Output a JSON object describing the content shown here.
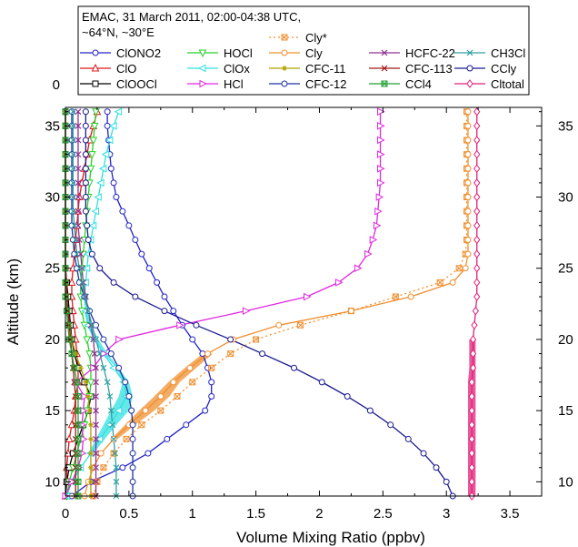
{
  "chart_data": {
    "type": "line",
    "title_lines": [
      "EMAC, 31 March 2011, 02:00-04:38 UTC,",
      "~64°N, ~30°E"
    ],
    "xlabel": "Volume Mixing Ratio (ppbv)",
    "ylabel": "Altitude (km)",
    "xlim": [
      0,
      3.75
    ],
    "ylim": [
      9,
      36.3
    ],
    "x_ticks": [
      0,
      0.5,
      1,
      1.5,
      2,
      2.5,
      3,
      3.5
    ],
    "x_tick_labels": [
      "0",
      "0.5",
      "1",
      "1.5",
      "2",
      "2.5",
      "3",
      "3.5"
    ],
    "y_ticks": [
      10,
      15,
      20,
      25,
      30,
      35
    ],
    "y_tick_labels": [
      "10",
      "15",
      "20",
      "25",
      "30",
      "35"
    ],
    "extra_y_tick_label": "0",
    "grid": false,
    "legend_placement": "top",
    "series": [
      {
        "name": "ClONO2",
        "color": "#2323c8",
        "marker": "circle",
        "style": "solid",
        "x": [
          0.05,
          0.2,
          0.45,
          0.65,
          0.8,
          0.95,
          1.1,
          1.15,
          1.15,
          1.12,
          1.08,
          1.0,
          0.92,
          0.85,
          0.78,
          0.72,
          0.66,
          0.6,
          0.55,
          0.5,
          0.45,
          0.4,
          0.38,
          0.36,
          0.35,
          0.34,
          0.33,
          0.33
        ],
        "y": [
          9,
          10,
          11,
          12,
          13,
          14,
          15,
          16,
          17,
          18,
          19,
          20,
          21,
          22,
          23,
          24,
          25,
          26,
          27,
          28,
          29,
          30,
          31,
          32,
          33,
          34,
          35,
          36
        ]
      },
      {
        "name": "ClO",
        "color": "#e01818",
        "marker": "triangle-up",
        "style": "solid",
        "x": [
          0.0,
          0.01,
          0.01,
          0.02,
          0.03,
          0.05,
          0.07,
          0.08,
          0.1,
          0.1,
          0.09,
          0.08,
          0.07,
          0.06,
          0.05,
          0.05,
          0.06,
          0.07,
          0.08,
          0.09,
          0.1,
          0.11,
          0.13,
          0.15,
          0.17,
          0.19,
          0.22,
          0.25
        ],
        "y": [
          9,
          10,
          11,
          12,
          13,
          14,
          15,
          16,
          17,
          18,
          19,
          20,
          21,
          22,
          23,
          24,
          25,
          26,
          27,
          28,
          29,
          30,
          31,
          32,
          33,
          34,
          35,
          36
        ]
      },
      {
        "name": "ClOOCl",
        "color": "#000000",
        "marker": "square",
        "style": "solid",
        "x": [
          0.0,
          0.01,
          0.03,
          0.06,
          0.1,
          0.14,
          0.18,
          0.2,
          0.15,
          0.1,
          0.07,
          0.05,
          0.04,
          0.03,
          0.02,
          0.01,
          0.0,
          0.0,
          0.0,
          0.0,
          0.0,
          0.0,
          0.0,
          0.0,
          0.0,
          0.0,
          0.0,
          0.0
        ],
        "y": [
          9,
          10,
          11,
          12,
          13,
          14,
          15,
          16,
          17,
          18,
          19,
          20,
          21,
          22,
          23,
          24,
          25,
          26,
          27,
          28,
          29,
          30,
          31,
          32,
          33,
          34,
          35,
          36
        ]
      },
      {
        "name": "HOCl",
        "color": "#28d028",
        "marker": "triangle-down",
        "style": "solid",
        "x": [
          0.01,
          0.03,
          0.06,
          0.09,
          0.12,
          0.15,
          0.17,
          0.19,
          0.2,
          0.2,
          0.19,
          0.17,
          0.15,
          0.13,
          0.12,
          0.12,
          0.13,
          0.14,
          0.15,
          0.16,
          0.17,
          0.18,
          0.19,
          0.2,
          0.21,
          0.22,
          0.23,
          0.24
        ],
        "y": [
          9,
          10,
          11,
          12,
          13,
          14,
          15,
          16,
          17,
          18,
          19,
          20,
          21,
          22,
          23,
          24,
          25,
          26,
          27,
          28,
          29,
          30,
          31,
          32,
          33,
          34,
          35,
          36
        ]
      },
      {
        "name": "ClOx",
        "color": "#30e0e0",
        "marker": "triangle-left",
        "style": "solid",
        "x": [
          0.01,
          0.05,
          0.12,
          0.2,
          0.27,
          0.35,
          0.42,
          0.48,
          0.46,
          0.38,
          0.3,
          0.23,
          0.18,
          0.16,
          0.15,
          0.16,
          0.17,
          0.18,
          0.2,
          0.22,
          0.24,
          0.26,
          0.28,
          0.3,
          0.32,
          0.35,
          0.38,
          0.42
        ],
        "y": [
          9,
          10,
          11,
          12,
          13,
          14,
          15,
          16,
          17,
          18,
          19,
          20,
          21,
          22,
          23,
          24,
          25,
          26,
          27,
          28,
          29,
          30,
          31,
          32,
          33,
          34,
          35,
          36
        ]
      },
      {
        "name": "HCl",
        "color": "#e028e0",
        "marker": "triangle-right",
        "style": "solid",
        "x": [
          0.0,
          0.05,
          0.1,
          0.13,
          0.14,
          0.13,
          0.14,
          0.15,
          0.08,
          0.22,
          0.3,
          0.42,
          0.9,
          1.42,
          1.9,
          2.15,
          2.3,
          2.38,
          2.42,
          2.45,
          2.46,
          2.47,
          2.48,
          2.48,
          2.48,
          2.48,
          2.48,
          2.48
        ],
        "y": [
          9,
          10,
          11,
          12,
          13,
          14,
          15,
          16,
          17,
          18,
          19,
          20,
          21,
          22,
          23,
          24,
          25,
          26,
          27,
          28,
          29,
          30,
          31,
          32,
          33,
          34,
          35,
          36
        ]
      },
      {
        "name": "Cly*",
        "color": "#f09030",
        "marker": "square-x",
        "style": "dotted",
        "x": [
          0.22,
          0.25,
          0.3,
          0.38,
          0.48,
          0.6,
          0.75,
          0.88,
          1.0,
          1.15,
          1.3,
          1.5,
          1.85,
          2.25,
          2.6,
          2.95,
          3.1,
          3.15,
          3.16,
          3.16,
          3.16,
          3.16,
          3.16,
          3.16,
          3.16,
          3.16,
          3.16,
          3.16
        ],
        "y": [
          9,
          10,
          11,
          12,
          13,
          14,
          15,
          16,
          17,
          18,
          19,
          20,
          21,
          22,
          23,
          24,
          25,
          26,
          27,
          28,
          29,
          30,
          31,
          32,
          33,
          34,
          35,
          36
        ]
      },
      {
        "name": "Cly",
        "color": "#f09030",
        "marker": "circle",
        "style": "solid",
        "x": [
          0.15,
          0.18,
          0.22,
          0.28,
          0.38,
          0.5,
          0.63,
          0.75,
          0.85,
          0.98,
          1.12,
          1.32,
          1.68,
          2.25,
          2.72,
          3.05,
          3.15,
          3.17,
          3.17,
          3.17,
          3.17,
          3.17,
          3.17,
          3.17,
          3.17,
          3.17,
          3.17,
          3.17
        ],
        "y": [
          9,
          10,
          11,
          12,
          13,
          14,
          15,
          16,
          17,
          18,
          19,
          20,
          21,
          22,
          23,
          24,
          25,
          26,
          27,
          28,
          29,
          30,
          31,
          32,
          33,
          34,
          35,
          36
        ]
      },
      {
        "name": "CFC-11",
        "color": "#b0a000",
        "marker": "star",
        "style": "solid",
        "x": [
          0.2,
          0.2,
          0.2,
          0.2,
          0.2,
          0.2,
          0.19,
          0.18,
          0.16,
          0.12,
          0.08,
          0.05,
          0.03,
          0.02,
          0.01,
          0.0,
          0.0,
          0.0,
          0.0,
          0.0,
          0.0,
          0.0,
          0.0,
          0.0,
          0.0,
          0.0,
          0.0,
          0.0
        ],
        "y": [
          9,
          10,
          11,
          12,
          13,
          14,
          15,
          16,
          17,
          18,
          19,
          20,
          21,
          22,
          23,
          24,
          25,
          26,
          27,
          28,
          29,
          30,
          31,
          32,
          33,
          34,
          35,
          36
        ]
      },
      {
        "name": "CFC-12",
        "color": "#2030a0",
        "marker": "circle",
        "style": "solid",
        "x": [
          0.53,
          0.53,
          0.53,
          0.53,
          0.53,
          0.53,
          0.52,
          0.5,
          0.47,
          0.42,
          0.36,
          0.3,
          0.24,
          0.19,
          0.15,
          0.11,
          0.09,
          0.07,
          0.06,
          0.05,
          0.05,
          0.05,
          0.05,
          0.05,
          0.05,
          0.05,
          0.05,
          0.05
        ],
        "y": [
          9,
          10,
          11,
          12,
          13,
          14,
          15,
          16,
          17,
          18,
          19,
          20,
          21,
          22,
          23,
          24,
          25,
          26,
          27,
          28,
          29,
          30,
          31,
          32,
          33,
          34,
          35,
          36
        ]
      },
      {
        "name": "HCFC-22",
        "color": "#903090",
        "marker": "x",
        "style": "solid",
        "x": [
          0.24,
          0.24,
          0.24,
          0.24,
          0.24,
          0.24,
          0.24,
          0.24,
          0.24,
          0.24,
          0.23,
          0.22,
          0.2,
          0.18,
          0.16,
          0.14,
          0.13,
          0.12,
          0.11,
          0.1,
          0.1,
          0.1,
          0.1,
          0.1,
          0.1,
          0.1,
          0.1,
          0.1
        ],
        "y": [
          9,
          10,
          11,
          12,
          13,
          14,
          15,
          16,
          17,
          18,
          19,
          20,
          21,
          22,
          23,
          24,
          25,
          26,
          27,
          28,
          29,
          30,
          31,
          32,
          33,
          34,
          35,
          36
        ]
      },
      {
        "name": "CFC-113",
        "color": "#a01818",
        "marker": "x",
        "style": "solid",
        "x": [
          0.08,
          0.08,
          0.08,
          0.08,
          0.08,
          0.08,
          0.08,
          0.08,
          0.07,
          0.06,
          0.05,
          0.04,
          0.03,
          0.02,
          0.01,
          0.01,
          0.0,
          0.0,
          0.0,
          0.0,
          0.0,
          0.0,
          0.0,
          0.0,
          0.0,
          0.0,
          0.0,
          0.0
        ],
        "y": [
          9,
          10,
          11,
          12,
          13,
          14,
          15,
          16,
          17,
          18,
          19,
          20,
          21,
          22,
          23,
          24,
          25,
          26,
          27,
          28,
          29,
          30,
          31,
          32,
          33,
          34,
          35,
          36
        ]
      },
      {
        "name": "CCl4",
        "color": "#20a030",
        "marker": "square-x",
        "style": "solid",
        "x": [
          0.1,
          0.1,
          0.1,
          0.1,
          0.1,
          0.1,
          0.1,
          0.1,
          0.09,
          0.07,
          0.05,
          0.03,
          0.02,
          0.01,
          0.0,
          0.0,
          0.0,
          0.0,
          0.0,
          0.0,
          0.0,
          0.0,
          0.0,
          0.0,
          0.0,
          0.0,
          0.0,
          0.0
        ],
        "y": [
          9,
          10,
          11,
          12,
          13,
          14,
          15,
          16,
          17,
          18,
          19,
          20,
          21,
          22,
          23,
          24,
          25,
          26,
          27,
          28,
          29,
          30,
          31,
          32,
          33,
          34,
          35,
          36
        ]
      },
      {
        "name": "CH3Cl",
        "color": "#30a0a0",
        "marker": "x",
        "style": "solid",
        "x": [
          0.4,
          0.4,
          0.4,
          0.39,
          0.38,
          0.37,
          0.36,
          0.35,
          0.33,
          0.3,
          0.27,
          0.24,
          0.21,
          0.18,
          0.15,
          0.13,
          0.11,
          0.09,
          0.08,
          0.07,
          0.06,
          0.06,
          0.06,
          0.06,
          0.06,
          0.06,
          0.06,
          0.06
        ],
        "y": [
          9,
          10,
          11,
          12,
          13,
          14,
          15,
          16,
          17,
          18,
          19,
          20,
          21,
          22,
          23,
          24,
          25,
          26,
          27,
          28,
          29,
          30,
          31,
          32,
          33,
          34,
          35,
          36
        ]
      },
      {
        "name": "CCly",
        "color": "#1a1a90",
        "marker": "circle",
        "style": "solid",
        "x": [
          3.05,
          3.0,
          2.92,
          2.82,
          2.7,
          2.56,
          2.4,
          2.22,
          2.02,
          1.8,
          1.55,
          1.3,
          1.03,
          0.78,
          0.55,
          0.38,
          0.27,
          0.21,
          0.18,
          0.17,
          0.16,
          0.16,
          0.16,
          0.16,
          0.16,
          0.16,
          0.16,
          0.16
        ],
        "y": [
          9,
          10,
          11,
          12,
          13,
          14,
          15,
          16,
          17,
          18,
          19,
          20,
          21,
          22,
          23,
          24,
          25,
          26,
          27,
          28,
          29,
          30,
          31,
          32,
          33,
          34,
          35,
          36
        ]
      },
      {
        "name": "Cltotal",
        "color": "#e0207a",
        "marker": "diamond",
        "style": "solid",
        "x": [
          3.2,
          3.2,
          3.2,
          3.2,
          3.2,
          3.2,
          3.2,
          3.2,
          3.2,
          3.21,
          3.21,
          3.21,
          3.22,
          3.23,
          3.24,
          3.24,
          3.24,
          3.24,
          3.24,
          3.24,
          3.24,
          3.24,
          3.24,
          3.24,
          3.24,
          3.24,
          3.24,
          3.24
        ],
        "y": [
          9,
          10,
          11,
          12,
          13,
          14,
          15,
          16,
          17,
          18,
          19,
          20,
          21,
          22,
          23,
          24,
          25,
          26,
          27,
          28,
          29,
          30,
          31,
          32,
          33,
          34,
          35,
          36
        ]
      }
    ],
    "bands": [
      {
        "series": "ClOx",
        "color": "#30e0e0",
        "y": [
          12,
          13,
          14,
          15,
          16,
          17,
          18,
          19,
          20,
          21,
          22
        ],
        "x_low": [
          0.18,
          0.24,
          0.3,
          0.36,
          0.42,
          0.45,
          0.4,
          0.3,
          0.22,
          0.17,
          0.15
        ],
        "x_high": [
          0.22,
          0.31,
          0.4,
          0.5,
          0.53,
          0.5,
          0.42,
          0.33,
          0.26,
          0.2,
          0.17
        ]
      },
      {
        "series": "Cly",
        "color": "#f09030",
        "y": [
          13,
          14,
          15,
          16,
          17,
          18,
          19
        ],
        "x_low": [
          0.36,
          0.47,
          0.58,
          0.7,
          0.81,
          0.94,
          1.08
        ],
        "x_high": [
          0.41,
          0.55,
          0.7,
          0.82,
          0.9,
          1.03,
          1.16
        ]
      },
      {
        "series": "Cltotal",
        "color": "#e0207a",
        "y": [
          9,
          10,
          11,
          12,
          13,
          14,
          15,
          16,
          17,
          18,
          19,
          20
        ],
        "x_low": [
          3.17,
          3.17,
          3.17,
          3.17,
          3.17,
          3.17,
          3.17,
          3.17,
          3.17,
          3.18,
          3.18,
          3.18
        ],
        "x_high": [
          3.23,
          3.23,
          3.23,
          3.23,
          3.23,
          3.23,
          3.23,
          3.23,
          3.23,
          3.23,
          3.23,
          3.23
        ]
      }
    ]
  }
}
